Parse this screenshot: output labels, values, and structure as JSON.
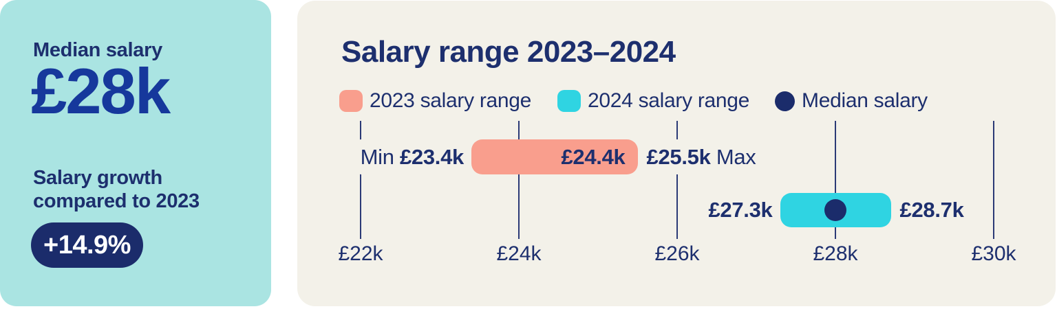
{
  "colors": {
    "page_bg": "#FFFFFF",
    "teal": "#AAE4E2",
    "cream": "#F3F1E9",
    "navy": "#1D2F6E",
    "royal": "#16389C",
    "salmon": "#F99E8D",
    "cyan": "#2FD4E2",
    "marker": "#1B2C6B",
    "grid": "#2B3A76"
  },
  "stat_card": {
    "label": "Median salary",
    "value": "£28k",
    "growth_label_line1": "Salary growth",
    "growth_label_line2": "compared to 2023",
    "badge": "+14.9%"
  },
  "chart_data": {
    "type": "bar",
    "orientation": "horizontal-range",
    "title": "Salary range 2023–2024",
    "x_ticks": [
      "£22k",
      "£24k",
      "£26k",
      "£28k",
      "£30k"
    ],
    "x_tick_values_k": [
      22,
      24,
      26,
      28,
      30
    ],
    "xlim_k": [
      22,
      30
    ],
    "grid": "vertical-lines",
    "legend_position": "top",
    "legend": [
      {
        "label": "2023 salary range",
        "swatch": "rounded-square",
        "color": "#F99E8D"
      },
      {
        "label": "2024 salary range",
        "swatch": "rounded-square",
        "color": "#2FD4E2"
      },
      {
        "label": "Median salary",
        "swatch": "circle",
        "color": "#1B2C6B"
      }
    ],
    "series": [
      {
        "name": "2023 salary range",
        "color": "#F99E8D",
        "min_k": 23.4,
        "median_k": 24.4,
        "max_k": 25.5,
        "min_prefix": "Min",
        "min_label": "£23.4k",
        "bar_label": "£24.4k",
        "max_label": "£25.5k",
        "max_suffix": "Max"
      },
      {
        "name": "2024 salary range",
        "color": "#2FD4E2",
        "min_k": 27.3,
        "median_k": 28,
        "max_k": 28.7,
        "min_label": "£27.3k",
        "max_label": "£28.7k",
        "median_marker": true,
        "median_marker_color": "#1B2C6B"
      }
    ]
  }
}
